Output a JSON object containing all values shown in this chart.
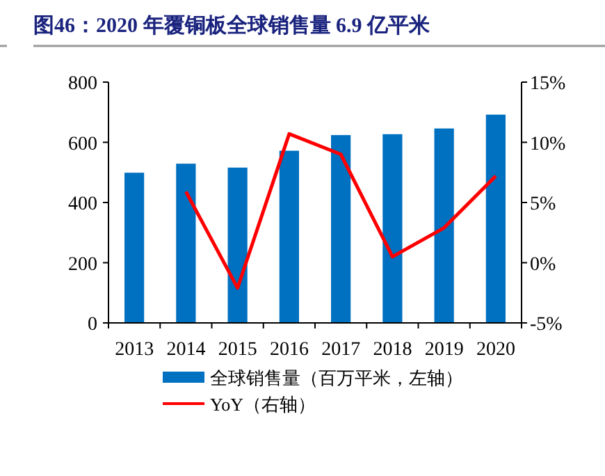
{
  "chart_data": {
    "type": "bar",
    "title": "图46：2020 年覆铜板全球销售量 6.9 亿平米",
    "categories": [
      "2013",
      "2014",
      "2015",
      "2016",
      "2017",
      "2018",
      "2019",
      "2020"
    ],
    "series": [
      {
        "name": "全球销售量（百万平米，左轴）",
        "color": "#0070c0",
        "values": [
          499,
          529,
          516,
          572,
          624,
          627,
          646,
          692
        ]
      },
      {
        "name": "YoY（右轴）",
        "type": "line",
        "axis": "y2",
        "color": "#ff0000",
        "values": [
          null,
          5.9,
          -2.1,
          10.7,
          9.0,
          0.5,
          2.9,
          7.2
        ]
      }
    ],
    "ylim": [
      0,
      800
    ],
    "yticks": [
      0,
      200,
      400,
      600,
      800
    ],
    "y2lim": [
      -5,
      15
    ],
    "y2ticks": [
      {
        "value": -5,
        "label": "-5%"
      },
      {
        "value": 0,
        "label": "0%"
      },
      {
        "value": 5,
        "label": "5%"
      },
      {
        "value": 10,
        "label": "10%"
      },
      {
        "value": 15,
        "label": "15%"
      }
    ],
    "grid": false,
    "legend": "bottom",
    "marker": "none"
  }
}
